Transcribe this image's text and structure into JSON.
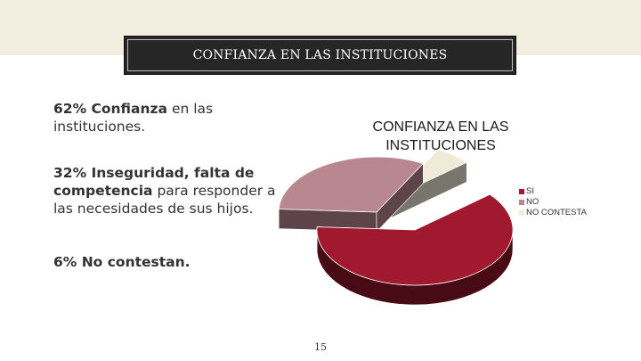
{
  "slide": {
    "header_title": "CONFIANZA EN LAS INSTITUCIONES",
    "page_number": "15",
    "bullets": [
      {
        "bold": "62% Confianza",
        "rest": " en las instituciones."
      },
      {
        "bold": "32% Inseguridad, falta de competencia",
        "rest": " para responder a las necesidades de sus hijos."
      },
      {
        "bold": "6% No contestan.",
        "rest": ""
      }
    ]
  },
  "colors": {
    "top_band": "#f2eedf",
    "title_box": "#262626",
    "si": "#a0192e",
    "no": "#b9878f",
    "no_contesta": "#f0ead8"
  },
  "chart_data": {
    "type": "pie",
    "title": "CONFIANZA EN LAS INSTITUCIONES",
    "categories": [
      "SI",
      "NO",
      "NO CONTESTA"
    ],
    "values": [
      62,
      32,
      6
    ],
    "legend_position": "right",
    "exploded": true,
    "three_d": true
  }
}
